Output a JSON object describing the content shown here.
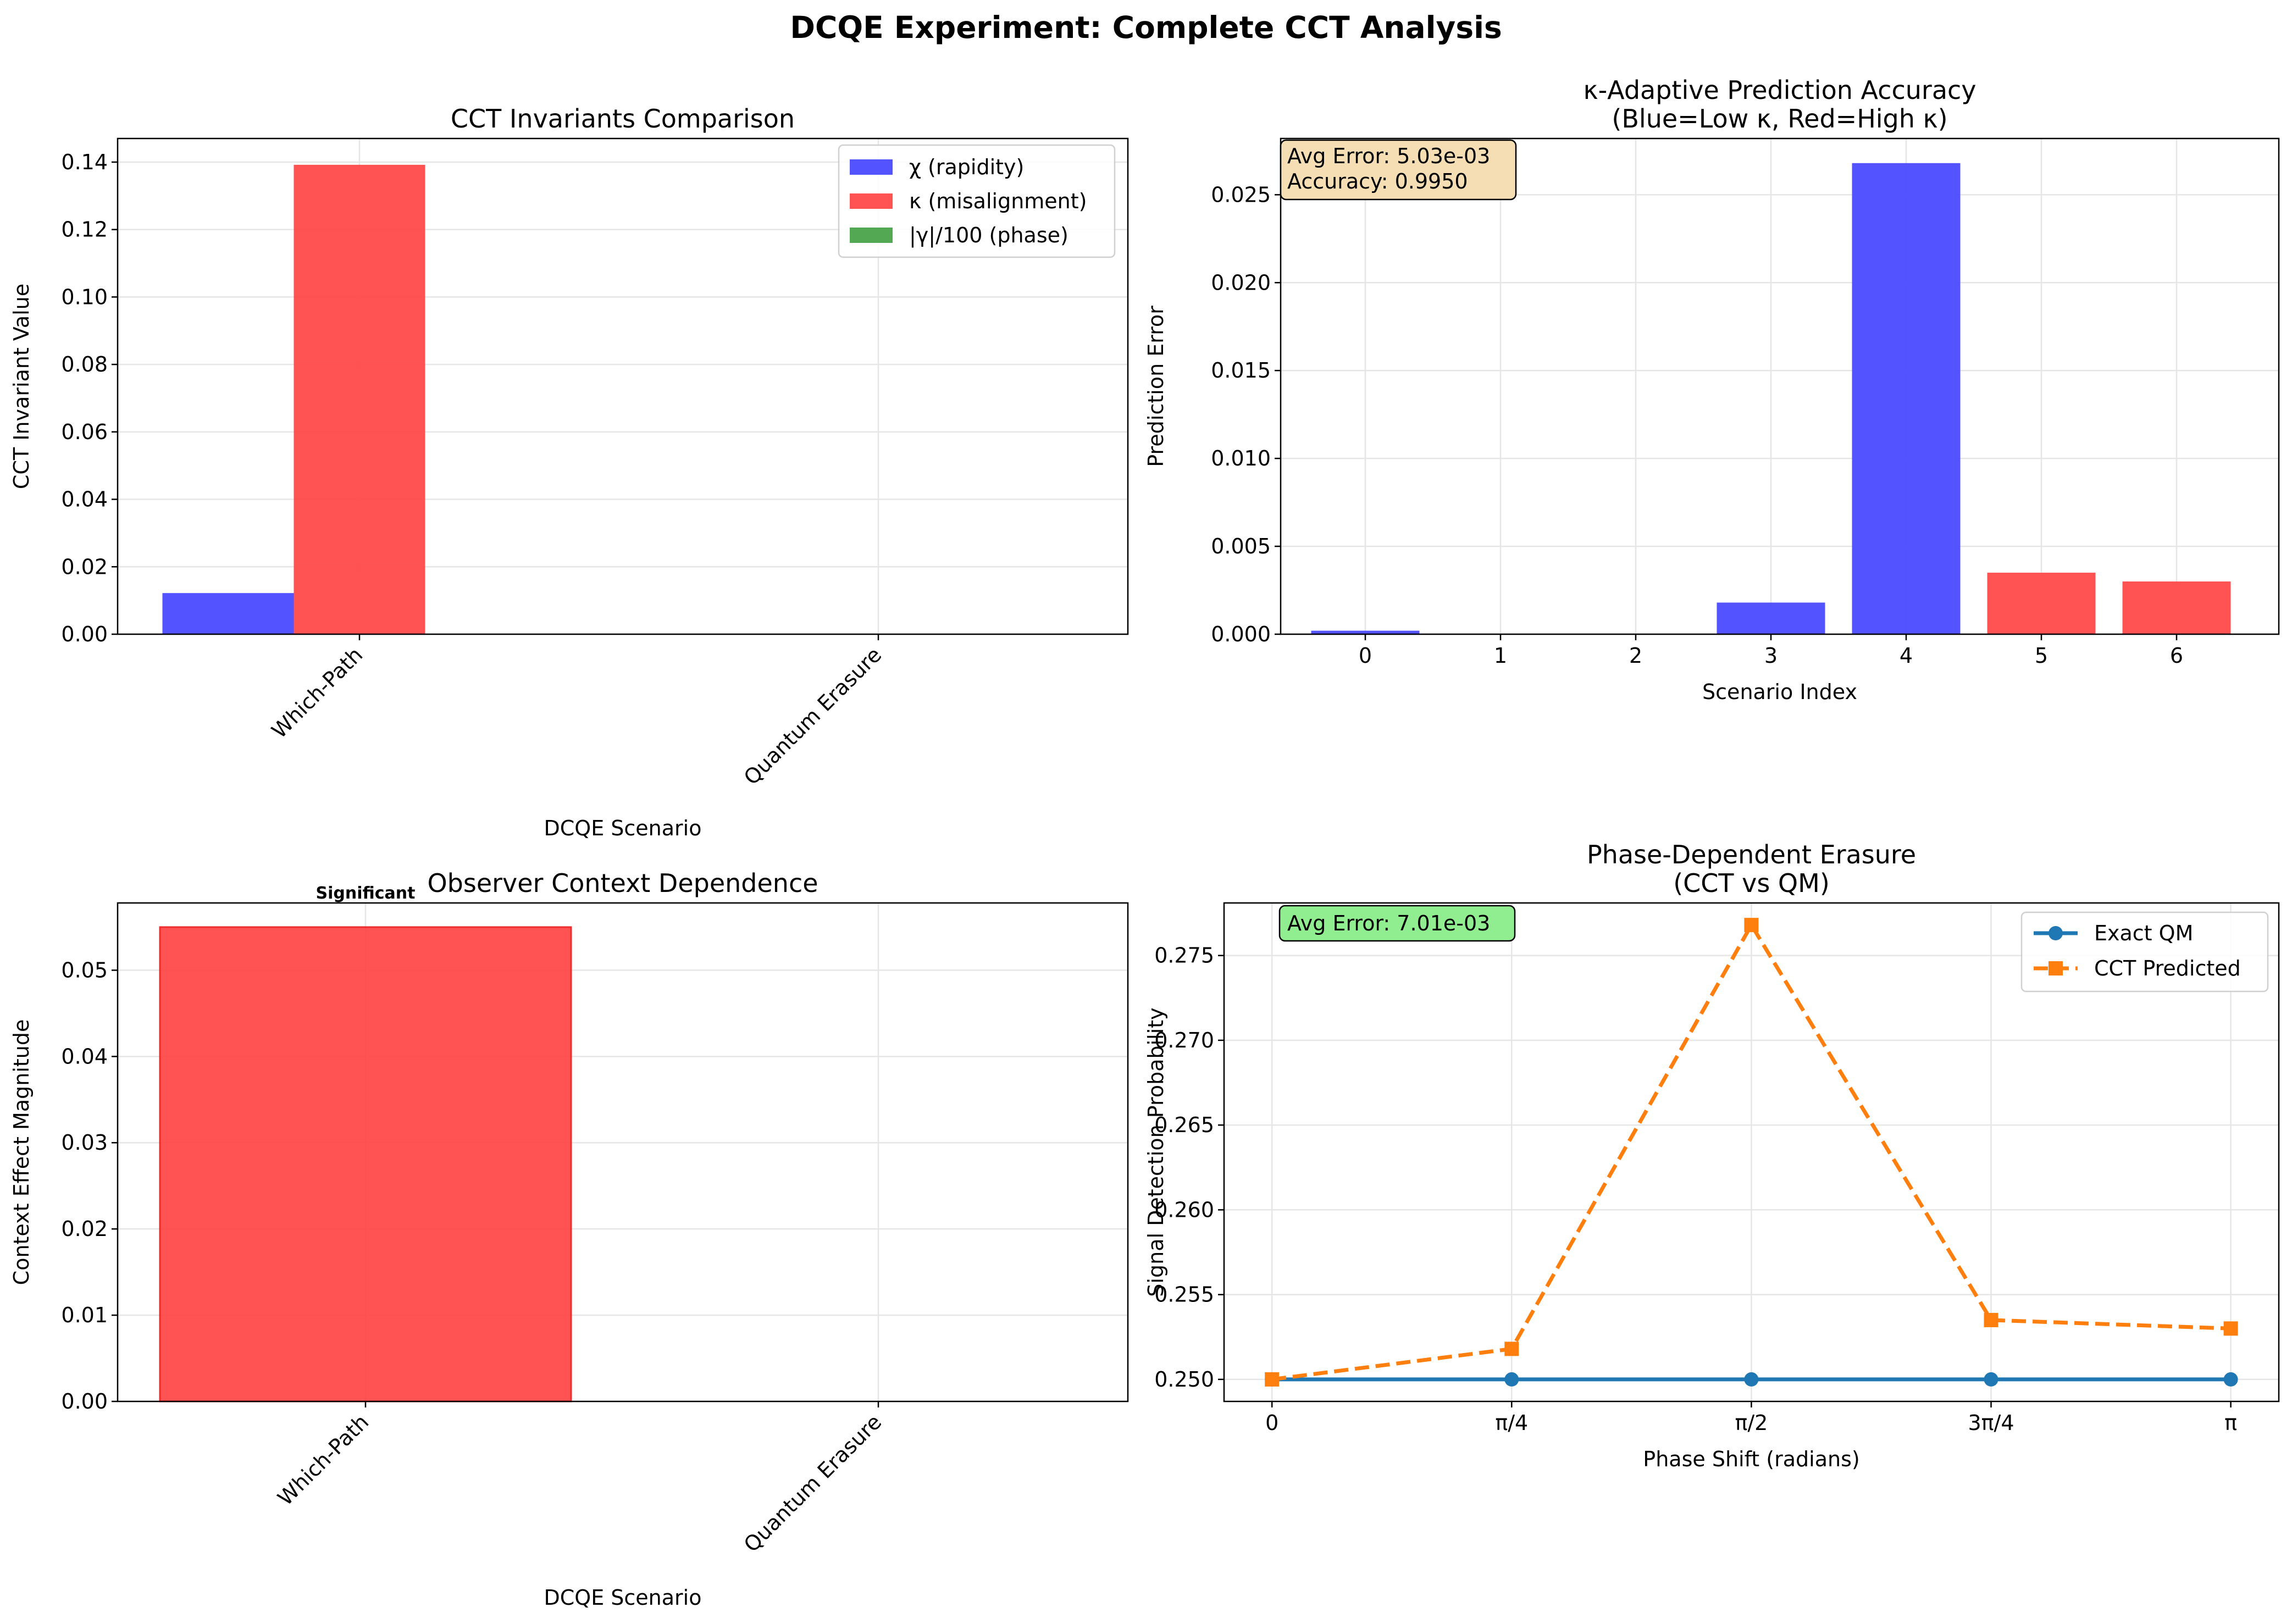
{
  "title": "DCQE Experiment: Complete CCT Analysis",
  "colors": {
    "blue": "#4a4aff",
    "red": "#ff4a4a",
    "green": "#4aa44a",
    "qm": "#1f77b4",
    "cct": "#ff7f0e",
    "box_orange": "#f5deb3",
    "box_green": "#90ee90"
  },
  "chart_data": [
    {
      "type": "bar",
      "title": "CCT Invariants Comparison",
      "xlabel": "DCQE Scenario",
      "ylabel": "CCT Invariant Value",
      "categories": [
        "Which-Path",
        "Quantum Erasure"
      ],
      "series": [
        {
          "name": "χ (rapidity)",
          "color": "blue",
          "values": [
            0.0122,
            0.0
          ]
        },
        {
          "name": "κ (misalignment)",
          "color": "red",
          "values": [
            0.1392,
            0.0
          ]
        },
        {
          "name": "|γ|/100 (phase)",
          "color": "green",
          "values": [
            0.0,
            0.0
          ]
        }
      ],
      "ylim": [
        0,
        0.147
      ],
      "yticks": [
        0.0,
        0.02,
        0.04,
        0.06,
        0.08,
        0.1,
        0.12,
        0.14
      ],
      "ytick_labels": [
        "0.00",
        "0.02",
        "0.04",
        "0.06",
        "0.08",
        "0.10",
        "0.12",
        "0.14"
      ],
      "legend": "top-right",
      "grid": true
    },
    {
      "type": "bar",
      "title": "κ-Adaptive Prediction Accuracy",
      "subtitle": "(Blue=Low κ, Red=High κ)",
      "xlabel": "Scenario Index",
      "ylabel": "Prediction Error",
      "categories": [
        "0",
        "1",
        "2",
        "3",
        "4",
        "5",
        "6"
      ],
      "values": [
        0.0002,
        0.0,
        0.0,
        0.0018,
        0.0268,
        0.0035,
        0.003
      ],
      "colors": [
        "blue",
        "blue",
        "blue",
        "blue",
        "blue",
        "red",
        "red"
      ],
      "ylim": [
        0,
        0.0282
      ],
      "yticks": [
        0.0,
        0.005,
        0.01,
        0.015,
        0.02,
        0.025
      ],
      "ytick_labels": [
        "0.000",
        "0.005",
        "0.010",
        "0.015",
        "0.020",
        "0.025"
      ],
      "annotation": [
        "Avg Error: 5.03e-03",
        "Accuracy: 0.9950"
      ],
      "grid": true
    },
    {
      "type": "bar",
      "title": "Observer Context Dependence",
      "xlabel": "DCQE Scenario",
      "ylabel": "Context Effect Magnitude",
      "categories": [
        "Which-Path",
        "Quantum Erasure"
      ],
      "values": [
        0.055,
        0.0
      ],
      "bar_label": "Significant",
      "ylim": [
        0,
        0.0578
      ],
      "yticks": [
        0.0,
        0.01,
        0.02,
        0.03,
        0.04,
        0.05
      ],
      "ytick_labels": [
        "0.00",
        "0.01",
        "0.02",
        "0.03",
        "0.04",
        "0.05"
      ],
      "grid": true
    },
    {
      "type": "line",
      "title": "Phase-Dependent Erasure",
      "subtitle": "(CCT vs QM)",
      "xlabel": "Phase Shift (radians)",
      "ylabel": "Signal Detection Probability",
      "x": [
        0,
        0.7854,
        1.5708,
        2.3562,
        3.1416
      ],
      "xtick_labels": [
        "0",
        "π/4",
        "π/2",
        "3π/4",
        "π"
      ],
      "series": [
        {
          "name": "Exact QM",
          "color": "qm",
          "marker": "circle",
          "dash": false,
          "values": [
            0.25,
            0.25,
            0.25,
            0.25,
            0.25
          ]
        },
        {
          "name": "CCT Predicted",
          "color": "cct",
          "marker": "square",
          "dash": true,
          "values": [
            0.25,
            0.2518,
            0.2768,
            0.2535,
            0.253
          ]
        }
      ],
      "xlim": [
        -0.157,
        3.299
      ],
      "ylim": [
        0.2487,
        0.2781
      ],
      "yticks": [
        0.25,
        0.255,
        0.26,
        0.265,
        0.27,
        0.275
      ],
      "ytick_labels": [
        "0.250",
        "0.255",
        "0.260",
        "0.265",
        "0.270",
        "0.275"
      ],
      "annotation": [
        "Avg Error: 7.01e-03"
      ],
      "legend": "top-right",
      "grid": true
    }
  ]
}
